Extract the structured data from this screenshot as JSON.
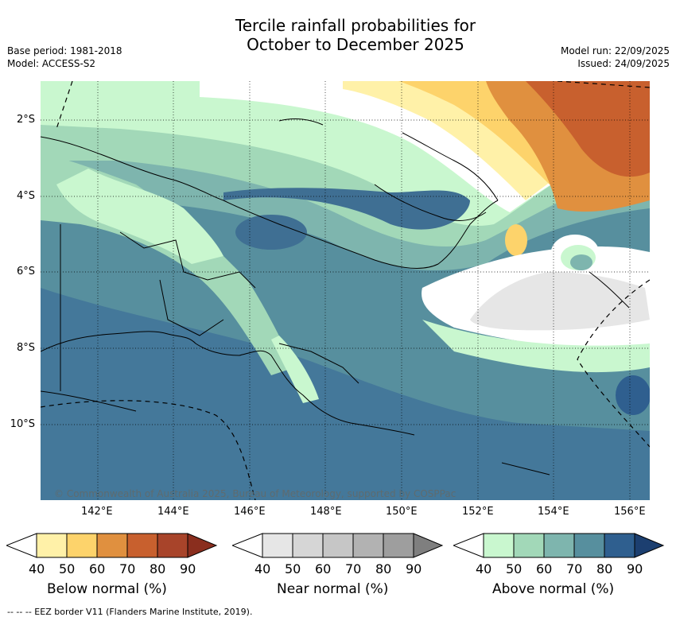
{
  "title_line1": "Tercile rainfall probabilities for",
  "title_line2": "October to December 2025",
  "base_period": "Base period: 1981-2018",
  "model": "Model: ACCESS-S2",
  "model_run": "Model run: 22/09/2025",
  "issued": "Issued: 24/09/2025",
  "lat_labels": [
    "2°S",
    "4°S",
    "6°S",
    "8°S",
    "10°S"
  ],
  "lon_labels": [
    "142°E",
    "144°E",
    "146°E",
    "148°E",
    "150°E",
    "152°E",
    "154°E",
    "156°E"
  ],
  "copyright": "© Commonwealth of Australia 2025, Bureau of Meteorology, supported by COSPPac",
  "legends": [
    {
      "title": "Below normal (%)",
      "ticks": [
        "40",
        "50",
        "60",
        "70",
        "80",
        "90"
      ],
      "colors": [
        "#fff1a8",
        "#fdd36b",
        "#e0903f",
        "#c8602e",
        "#a8442a",
        "#8a2e1e"
      ]
    },
    {
      "title": "Near normal (%)",
      "ticks": [
        "40",
        "50",
        "60",
        "70",
        "80",
        "90"
      ],
      "colors": [
        "#e6e6e6",
        "#d6d6d6",
        "#c6c6c6",
        "#b2b2b2",
        "#9e9e9e",
        "#7f7f7f"
      ]
    },
    {
      "title": "Above normal (%)",
      "ticks": [
        "40",
        "50",
        "60",
        "70",
        "80",
        "90"
      ],
      "colors": [
        "#c9f7cf",
        "#a2d8b8",
        "#7eb5ae",
        "#578f9e",
        "#2f5f8f",
        "#1c3f70"
      ]
    }
  ],
  "footnote": "--  --  -- EEZ border V11 (Flanders Marine Institute, 2019)."
}
